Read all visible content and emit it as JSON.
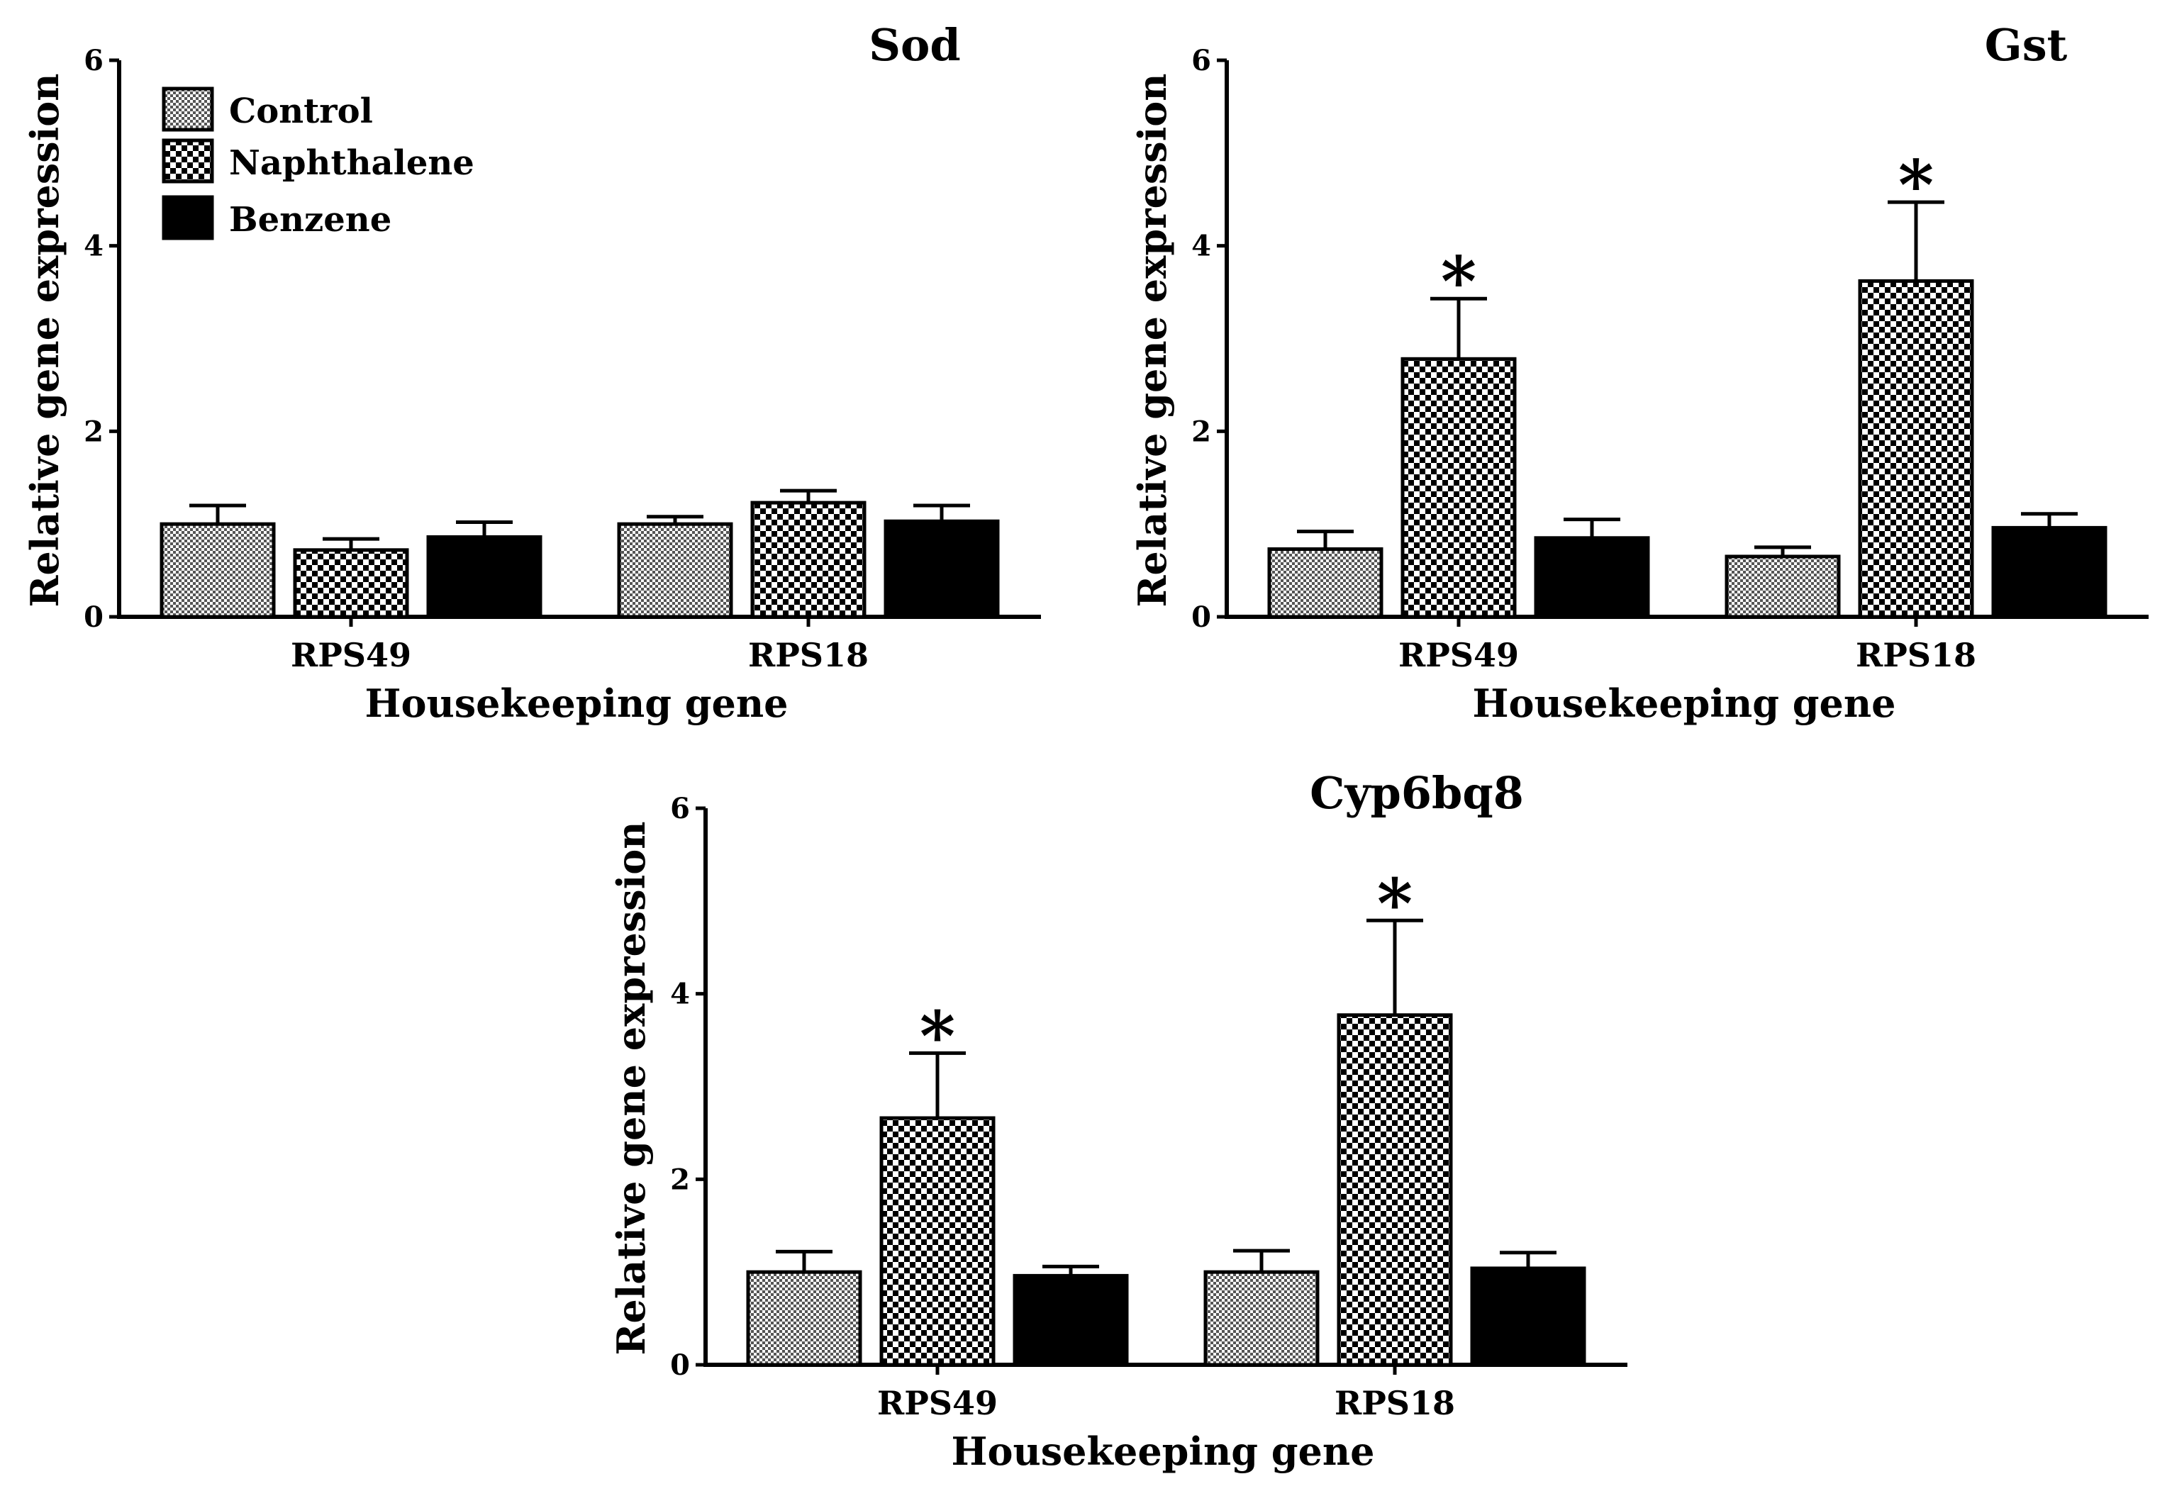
{
  "colors": {
    "control": "#7a7a7a",
    "naphthalene": "#000000",
    "benzene": "#000000",
    "axis": "#000000",
    "background": "#ffffff"
  },
  "legend": [
    {
      "name": "Control",
      "pattern": "fine-checker"
    },
    {
      "name": "Naphthalene",
      "pattern": "coarse-checker"
    },
    {
      "name": "Benzene",
      "pattern": "solid"
    }
  ],
  "chart_data": [
    {
      "type": "bar",
      "title": "Sod",
      "xlabel": "Housekeeping gene",
      "ylabel": "Relative gene expression",
      "ylim": [
        0,
        6
      ],
      "yticks": [
        0,
        2,
        4,
        6
      ],
      "categories": [
        "RPS49",
        "RPS18"
      ],
      "series": [
        {
          "name": "Control",
          "values": [
            1.0,
            1.0
          ],
          "errors": [
            0.2,
            0.08
          ]
        },
        {
          "name": "Naphthalene",
          "values": [
            0.72,
            1.23
          ],
          "errors": [
            0.12,
            0.13
          ]
        },
        {
          "name": "Benzene",
          "values": [
            0.86,
            1.03
          ],
          "errors": [
            0.16,
            0.17
          ]
        }
      ],
      "significance": [
        {
          "category": "RPS49",
          "series": "Naphthalene",
          "mark": ""
        },
        {
          "category": "RPS18",
          "series": "Naphthalene",
          "mark": ""
        }
      ],
      "legend_location": "top-left"
    },
    {
      "type": "bar",
      "title": "Gst",
      "xlabel": "Housekeeping gene",
      "ylabel": "Relative gene expression",
      "ylim": [
        0,
        6
      ],
      "yticks": [
        0,
        2,
        4,
        6
      ],
      "categories": [
        "RPS49",
        "RPS18"
      ],
      "series": [
        {
          "name": "Control",
          "values": [
            0.73,
            0.65
          ],
          "errors": [
            0.19,
            0.1
          ]
        },
        {
          "name": "Naphthalene",
          "values": [
            2.78,
            3.62
          ],
          "errors": [
            0.65,
            0.85
          ]
        },
        {
          "name": "Benzene",
          "values": [
            0.85,
            0.96
          ],
          "errors": [
            0.2,
            0.15
          ]
        }
      ],
      "significance": [
        {
          "category": "RPS49",
          "series": "Naphthalene",
          "mark": "*"
        },
        {
          "category": "RPS18",
          "series": "Naphthalene",
          "mark": "*"
        }
      ]
    },
    {
      "type": "bar",
      "title": "Cyp6bq8",
      "xlabel": "Housekeeping gene",
      "ylabel": "Relative gene expression",
      "ylim": [
        0,
        6
      ],
      "yticks": [
        0,
        2,
        4,
        6
      ],
      "categories": [
        "RPS49",
        "RPS18"
      ],
      "series": [
        {
          "name": "Control",
          "values": [
            1.0,
            1.0
          ],
          "errors": [
            0.22,
            0.23
          ]
        },
        {
          "name": "Naphthalene",
          "values": [
            2.66,
            3.77
          ],
          "errors": [
            0.7,
            1.02
          ]
        },
        {
          "name": "Benzene",
          "values": [
            0.96,
            1.04
          ],
          "errors": [
            0.1,
            0.17
          ]
        }
      ],
      "significance": [
        {
          "category": "RPS49",
          "series": "Naphthalene",
          "mark": "*"
        },
        {
          "category": "RPS18",
          "series": "Naphthalene",
          "mark": "*"
        }
      ]
    }
  ]
}
